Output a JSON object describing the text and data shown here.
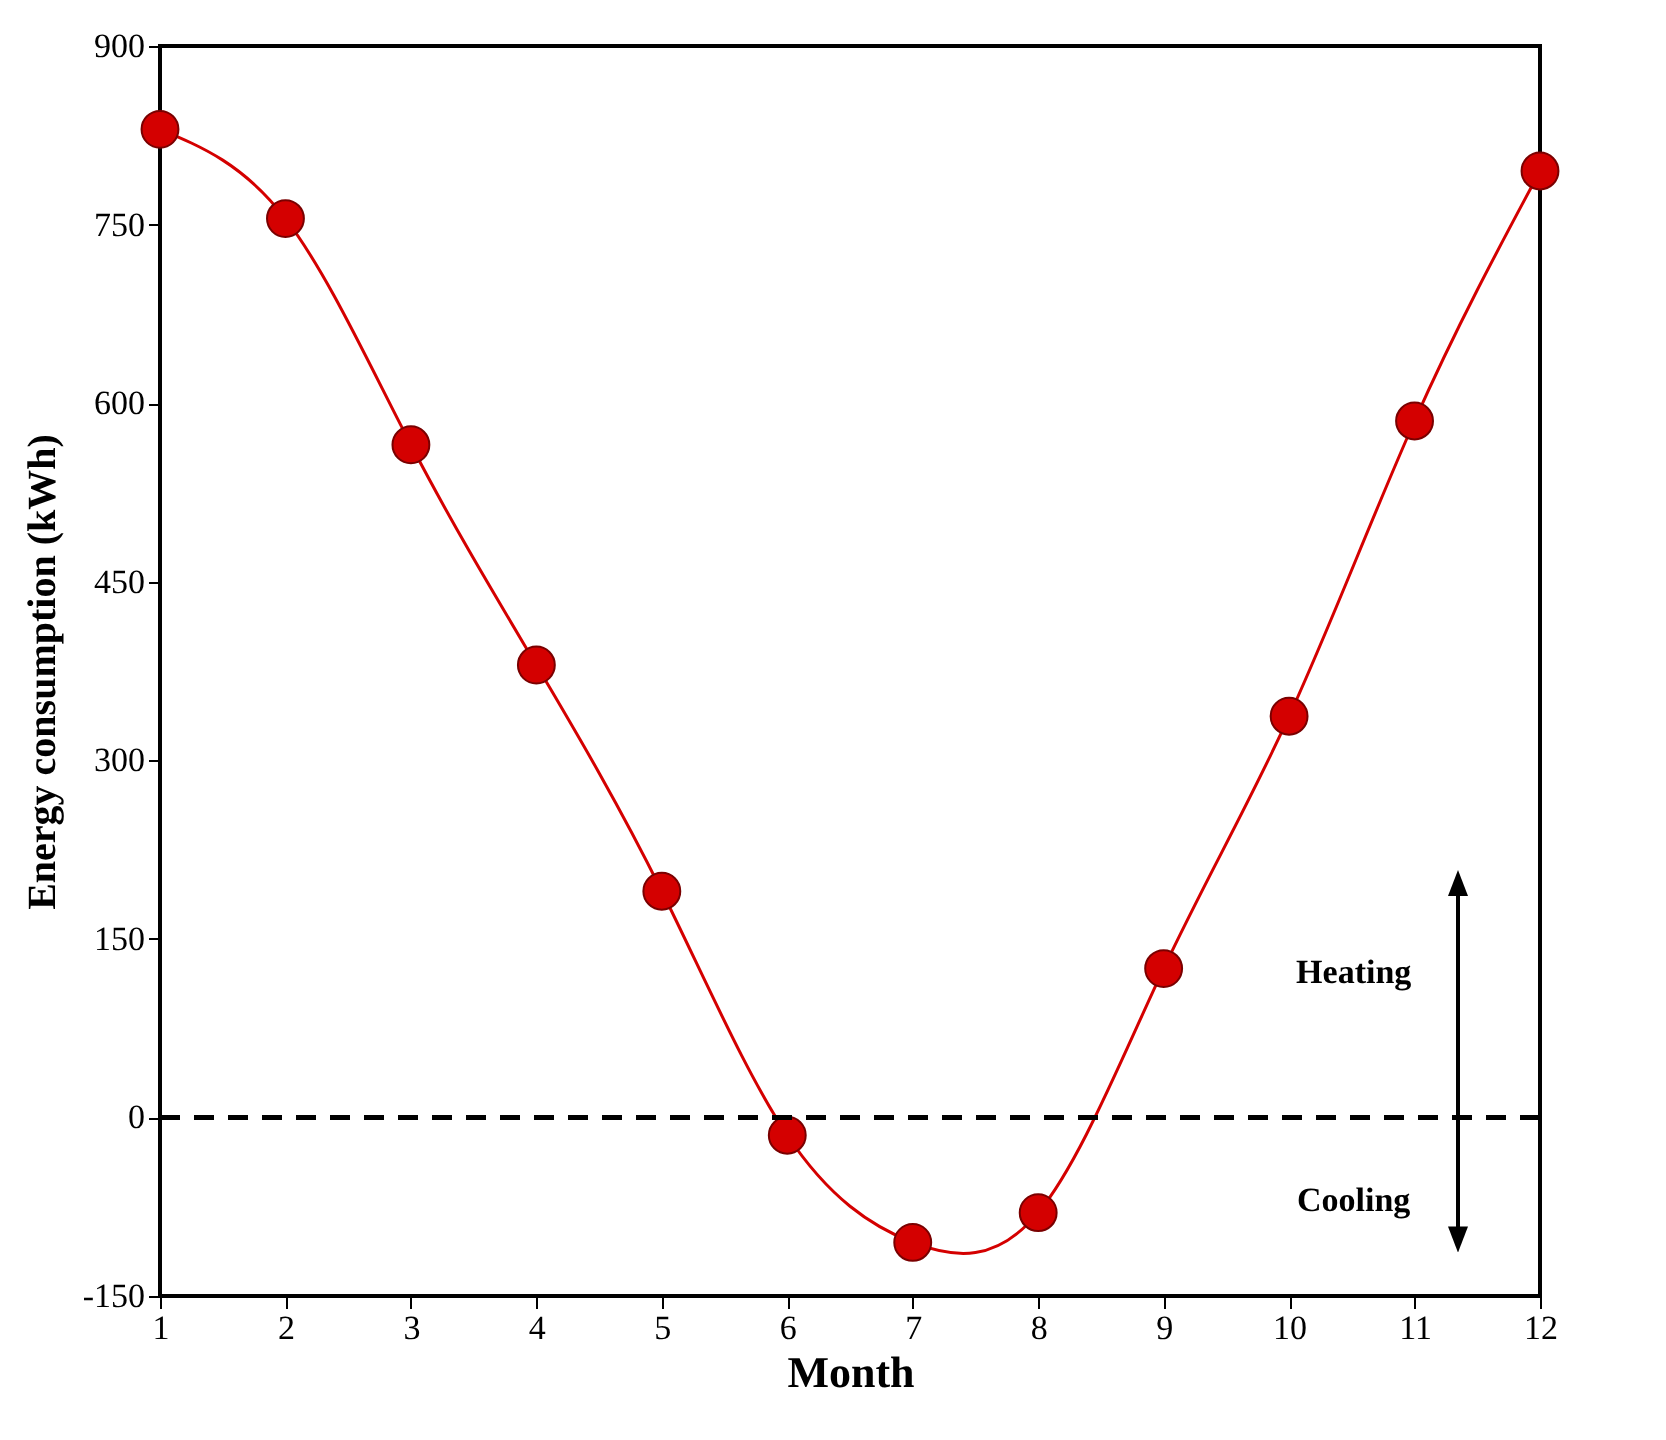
{
  "chart_data": {
    "type": "line",
    "xlabel": "Month",
    "ylabel": "Energy consumption (kWh)",
    "x": [
      1,
      2,
      3,
      4,
      5,
      6,
      7,
      8,
      9,
      10,
      11,
      12
    ],
    "series": [
      {
        "color": "#d40000",
        "values": [
          830,
          755,
          565,
          380,
          190,
          -15,
          -105,
          -80,
          125,
          337,
          585,
          795
        ]
      }
    ],
    "xlim": [
      1,
      12
    ],
    "xticks": [
      1,
      2,
      3,
      4,
      5,
      6,
      7,
      8,
      9,
      10,
      11,
      12
    ],
    "ylim": [
      -150,
      900
    ],
    "yticks": [
      -150,
      0,
      150,
      300,
      450,
      600,
      750,
      900
    ],
    "marker": "circle",
    "grid": false,
    "ref_lines": [
      {
        "axis": "y",
        "value": 0,
        "color": "#000000",
        "line_style": "dashed"
      }
    ],
    "annotations": [
      "Heating",
      "Cooling"
    ]
  }
}
